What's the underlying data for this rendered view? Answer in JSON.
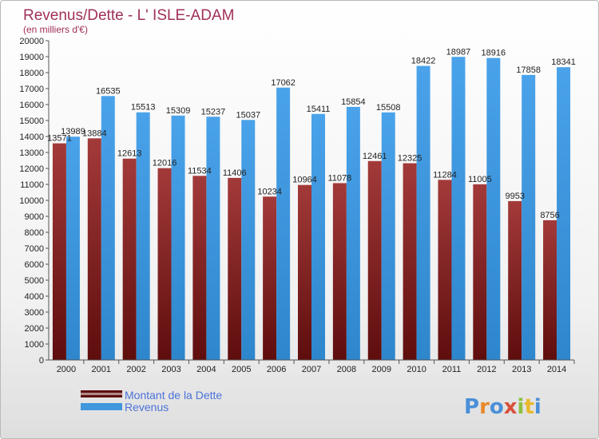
{
  "chart_data": {
    "type": "bar",
    "title": "Revenus/Dette - L' ISLE-ADAM",
    "subtitle": "(en milliers d'€)",
    "categories": [
      "2000",
      "2001",
      "2002",
      "2003",
      "2004",
      "2005",
      "2006",
      "2007",
      "2008",
      "2009",
      "2010",
      "2011",
      "2012",
      "2013",
      "2014"
    ],
    "series": [
      {
        "name": "Montant de la Dette",
        "color": "#7a1c1c",
        "values": [
          13571,
          13884,
          12613,
          12016,
          11534,
          11406,
          10234,
          10964,
          11078,
          12461,
          12325,
          11284,
          11005,
          9953,
          8756
        ],
        "labels": [
          "13571",
          "13884",
          "12613",
          "12016",
          "11534",
          "11406",
          "10234",
          "10964",
          "11078",
          "12461",
          "12325",
          "11284",
          "11005",
          "9953",
          "8756"
        ]
      },
      {
        "name": "Revenus",
        "color": "#3f97dd",
        "values": [
          13989,
          16535,
          15513,
          15309,
          15237,
          15037,
          17062,
          15411,
          15854,
          15508,
          18422,
          18987,
          18916,
          17858,
          18341
        ],
        "labels": [
          "13989",
          "16535",
          "15513",
          "15309",
          "15237",
          "15037",
          "17062",
          "15411",
          "15854",
          "15508",
          "18422",
          "18987",
          "18916",
          "17858",
          "18341"
        ]
      }
    ],
    "ylim": [
      0,
      20000
    ],
    "ytick_step": 1000,
    "grid": false,
    "legend": "bottom-left"
  },
  "brand": {
    "logo_text": "Proxiti"
  }
}
